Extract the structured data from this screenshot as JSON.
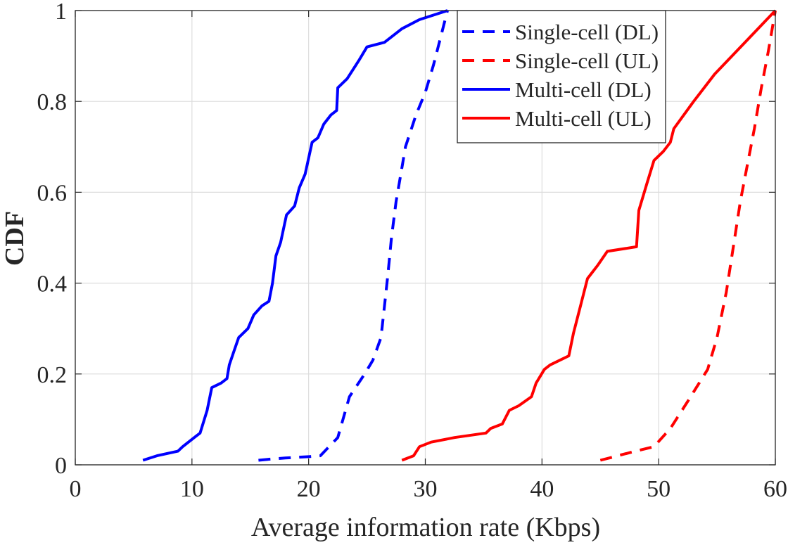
{
  "chart_data": {
    "type": "line",
    "xlabel": "Average information rate (Kbps)",
    "ylabel": "CDF",
    "xlim": [
      0,
      60
    ],
    "ylim": [
      0,
      1
    ],
    "xticks": [
      0,
      10,
      20,
      30,
      40,
      50,
      60
    ],
    "yticks": [
      0,
      0.2,
      0.4,
      0.6,
      0.8,
      1
    ],
    "xtick_labels": [
      "0",
      "10",
      "20",
      "30",
      "40",
      "50",
      "60"
    ],
    "ytick_labels": [
      "0",
      "0.2",
      "0.4",
      "0.6",
      "0.8",
      "1"
    ],
    "grid": true,
    "legend_position": "top-right",
    "series": [
      {
        "name": "Single-cell (DL)",
        "color": "#0000ff",
        "style": "dashed",
        "points": [
          [
            15.7,
            0.01
          ],
          [
            16.5,
            0.012
          ],
          [
            18,
            0.015
          ],
          [
            20,
            0.018
          ],
          [
            21,
            0.02
          ],
          [
            22.5,
            0.06
          ],
          [
            23.5,
            0.15
          ],
          [
            24.8,
            0.2
          ],
          [
            25.5,
            0.23
          ],
          [
            26.2,
            0.28
          ],
          [
            26.5,
            0.35
          ],
          [
            26.8,
            0.42
          ],
          [
            27.1,
            0.5
          ],
          [
            27.5,
            0.58
          ],
          [
            27.9,
            0.64
          ],
          [
            28.3,
            0.7
          ],
          [
            29.2,
            0.77
          ],
          [
            30,
            0.82
          ],
          [
            30.7,
            0.88
          ],
          [
            31.3,
            0.94
          ],
          [
            31.9,
            1
          ]
        ]
      },
      {
        "name": "Single-cell (UL)",
        "color": "#ff0000",
        "style": "dashed",
        "points": [
          [
            45,
            0.01
          ],
          [
            46.5,
            0.02
          ],
          [
            48,
            0.03
          ],
          [
            49.6,
            0.04
          ],
          [
            51,
            0.08
          ],
          [
            52.5,
            0.14
          ],
          [
            54.2,
            0.21
          ],
          [
            55,
            0.28
          ],
          [
            55.8,
            0.38
          ],
          [
            56.4,
            0.48
          ],
          [
            57,
            0.58
          ],
          [
            57.6,
            0.66
          ],
          [
            58.2,
            0.74
          ],
          [
            58.8,
            0.83
          ],
          [
            59.4,
            0.91
          ],
          [
            60,
            1
          ]
        ]
      },
      {
        "name": "Multi-cell (DL)",
        "color": "#0000ff",
        "style": "solid",
        "points": [
          [
            5.8,
            0.01
          ],
          [
            7,
            0.02
          ],
          [
            8.8,
            0.03
          ],
          [
            9.2,
            0.04
          ],
          [
            10.2,
            0.06
          ],
          [
            10.7,
            0.07
          ],
          [
            11.3,
            0.12
          ],
          [
            11.7,
            0.17
          ],
          [
            12.5,
            0.18
          ],
          [
            13,
            0.19
          ],
          [
            13.2,
            0.22
          ],
          [
            13.6,
            0.25
          ],
          [
            14,
            0.28
          ],
          [
            14.8,
            0.3
          ],
          [
            15.3,
            0.33
          ],
          [
            16,
            0.35
          ],
          [
            16.6,
            0.36
          ],
          [
            16.9,
            0.4
          ],
          [
            17.2,
            0.46
          ],
          [
            17.6,
            0.49
          ],
          [
            18.1,
            0.55
          ],
          [
            18.8,
            0.57
          ],
          [
            19.2,
            0.61
          ],
          [
            19.7,
            0.64
          ],
          [
            20.3,
            0.71
          ],
          [
            20.8,
            0.72
          ],
          [
            21.3,
            0.75
          ],
          [
            21.9,
            0.77
          ],
          [
            22.4,
            0.78
          ],
          [
            22.5,
            0.83
          ],
          [
            23.3,
            0.85
          ],
          [
            24.3,
            0.89
          ],
          [
            25,
            0.92
          ],
          [
            26.5,
            0.93
          ],
          [
            28,
            0.96
          ],
          [
            29.5,
            0.98
          ],
          [
            31.9,
            1
          ]
        ]
      },
      {
        "name": "Multi-cell (UL)",
        "color": "#ff0000",
        "style": "solid",
        "points": [
          [
            28,
            0.01
          ],
          [
            29,
            0.02
          ],
          [
            29.5,
            0.04
          ],
          [
            30.5,
            0.05
          ],
          [
            32.5,
            0.06
          ],
          [
            35.2,
            0.07
          ],
          [
            35.6,
            0.08
          ],
          [
            36.6,
            0.09
          ],
          [
            37.2,
            0.12
          ],
          [
            38,
            0.13
          ],
          [
            39.1,
            0.15
          ],
          [
            39.5,
            0.18
          ],
          [
            40.2,
            0.21
          ],
          [
            40.7,
            0.22
          ],
          [
            42.3,
            0.24
          ],
          [
            42.7,
            0.29
          ],
          [
            43.3,
            0.35
          ],
          [
            43.9,
            0.41
          ],
          [
            44.8,
            0.44
          ],
          [
            45.6,
            0.47
          ],
          [
            48.1,
            0.48
          ],
          [
            48.3,
            0.56
          ],
          [
            49,
            0.62
          ],
          [
            49.6,
            0.67
          ],
          [
            50.4,
            0.69
          ],
          [
            51,
            0.71
          ],
          [
            51.3,
            0.74
          ],
          [
            53,
            0.8
          ],
          [
            54.8,
            0.86
          ],
          [
            57.4,
            0.93
          ],
          [
            60,
            1
          ]
        ]
      }
    ]
  }
}
